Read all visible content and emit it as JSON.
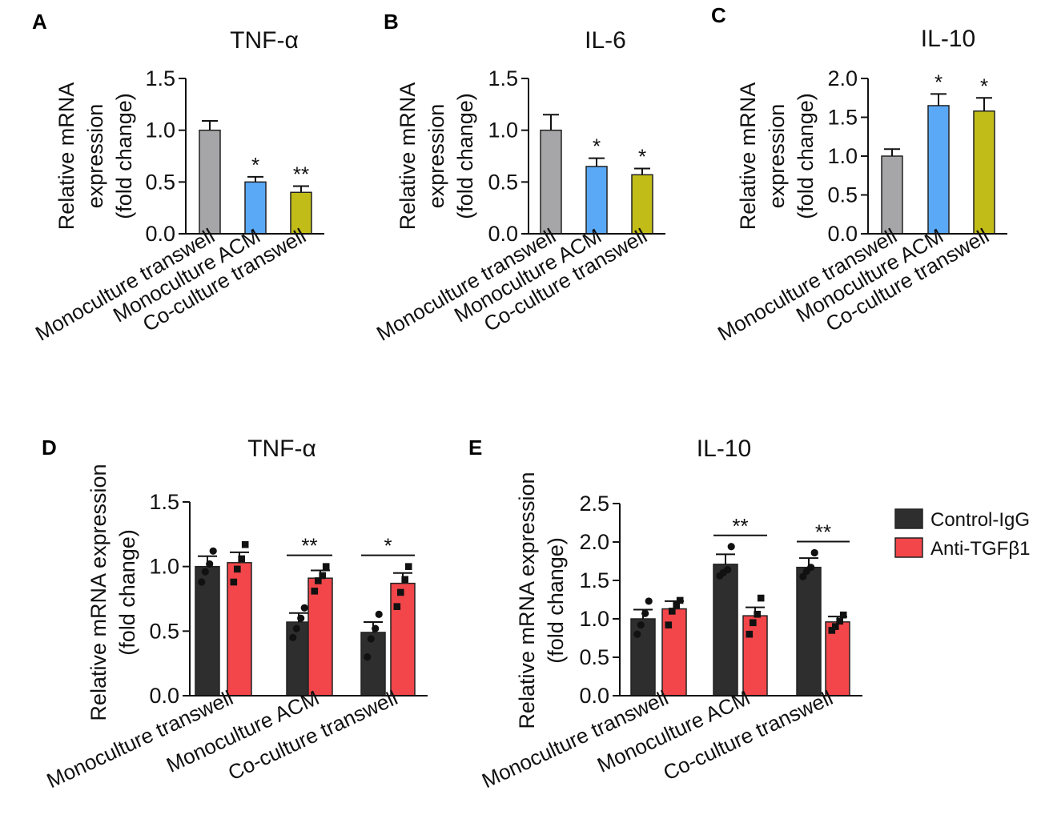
{
  "chart_data": [
    {
      "panel": "A",
      "type": "bar",
      "title": "TNF-α",
      "ylabel": [
        "Relative mRNA",
        "expression",
        "(fold change)"
      ],
      "ylim": [
        0,
        1.5
      ],
      "yticks": [
        "0.0",
        "0.5",
        "1.0",
        "1.5"
      ],
      "categories": [
        "Monoculture transwell",
        "Monoculture ACM",
        "Co-culture transwell"
      ],
      "values": [
        1.0,
        0.5,
        0.4
      ],
      "errors": [
        0.09,
        0.05,
        0.06
      ],
      "significance": [
        "",
        "*",
        "**"
      ],
      "colors": [
        "#a6a6a8",
        "#5aa9f7",
        "#c2bc19"
      ]
    },
    {
      "panel": "B",
      "type": "bar",
      "title": "IL-6",
      "ylabel": [
        "Relative mRNA",
        "expression",
        "(fold change)"
      ],
      "ylim": [
        0,
        1.5
      ],
      "yticks": [
        "0.0",
        "0.5",
        "1.0",
        "1.5"
      ],
      "categories": [
        "Monoculture transwell",
        "Monoculture ACM",
        "Co-culture transwell"
      ],
      "values": [
        1.0,
        0.65,
        0.57
      ],
      "errors": [
        0.15,
        0.08,
        0.06
      ],
      "significance": [
        "",
        "*",
        "*"
      ],
      "colors": [
        "#a6a6a8",
        "#5aa9f7",
        "#c2bc19"
      ]
    },
    {
      "panel": "C",
      "type": "bar",
      "title": "IL-10",
      "ylabel": [
        "Relative mRNA",
        "expression",
        "(fold change)"
      ],
      "ylim": [
        0,
        2.0
      ],
      "yticks": [
        "0.0",
        "0.5",
        "1.0",
        "1.5",
        "2.0"
      ],
      "categories": [
        "Monoculture transwell",
        "Monoculture ACM",
        "Co-culture transwell"
      ],
      "values": [
        1.0,
        1.65,
        1.58
      ],
      "errors": [
        0.09,
        0.15,
        0.17
      ],
      "significance": [
        "",
        "*",
        "*"
      ],
      "colors": [
        "#a6a6a8",
        "#5aa9f7",
        "#c2bc19"
      ]
    },
    {
      "panel": "D",
      "type": "bar",
      "title": "TNF-α",
      "ylabel": [
        "Relative mRNA expression",
        "(fold change)"
      ],
      "ylim": [
        0,
        1.5
      ],
      "yticks": [
        "0.0",
        "0.5",
        "1.0",
        "1.5"
      ],
      "categories": [
        "Monoculture transwell",
        "Monoculture ACM",
        "Co-culture transwell"
      ],
      "series": [
        {
          "name": "Control-IgG",
          "color": "#2e2e2e",
          "values": [
            1.0,
            0.57,
            0.49
          ],
          "errors": [
            0.08,
            0.07,
            0.08
          ],
          "points": [
            [
              0.88,
              0.96,
              1.02,
              1.12
            ],
            [
              0.45,
              0.52,
              0.6,
              0.68
            ],
            [
              0.3,
              0.44,
              0.52,
              0.63
            ]
          ]
        },
        {
          "name": "Anti-TGFβ1",
          "color": "#f2464a",
          "values": [
            1.03,
            0.91,
            0.87
          ],
          "errors": [
            0.08,
            0.06,
            0.08
          ],
          "points": [
            [
              0.88,
              0.98,
              1.06,
              1.17
            ],
            [
              0.81,
              0.89,
              0.93,
              1.0
            ],
            [
              0.69,
              0.8,
              0.9,
              1.0
            ]
          ]
        }
      ],
      "significance": [
        "",
        "**",
        "*"
      ]
    },
    {
      "panel": "E",
      "type": "bar",
      "title": "IL-10",
      "ylabel": [
        "Relative mRNA expression",
        "(fold change)"
      ],
      "ylim": [
        0,
        2.5
      ],
      "yticks": [
        "0.0",
        "0.5",
        "1.0",
        "1.5",
        "2.0",
        "2.5"
      ],
      "categories": [
        "Monoculture transwell",
        "Monoculture ACM",
        "Co-culture transwell"
      ],
      "series": [
        {
          "name": "Control-IgG",
          "color": "#2e2e2e",
          "values": [
            1.0,
            1.71,
            1.67
          ],
          "errors": [
            0.12,
            0.13,
            0.12
          ],
          "points": [
            [
              0.8,
              0.92,
              1.07,
              1.23
            ],
            [
              1.56,
              1.6,
              1.64,
              1.94
            ],
            [
              1.55,
              1.62,
              1.67,
              1.86
            ]
          ]
        },
        {
          "name": "Anti-TGFβ1",
          "color": "#f2464a",
          "values": [
            1.13,
            1.04,
            0.96
          ],
          "errors": [
            0.1,
            0.11,
            0.07
          ],
          "points": [
            [
              0.92,
              1.1,
              1.18,
              1.24
            ],
            [
              0.8,
              0.95,
              1.06,
              1.27
            ],
            [
              0.85,
              0.9,
              0.97,
              1.05
            ]
          ]
        }
      ],
      "significance": [
        "",
        "**",
        "**"
      ]
    }
  ],
  "legend": [
    {
      "label": "Control-IgG",
      "color": "#2e2e2e"
    },
    {
      "label": "Anti-TGFβ1",
      "color": "#f2464a"
    }
  ]
}
